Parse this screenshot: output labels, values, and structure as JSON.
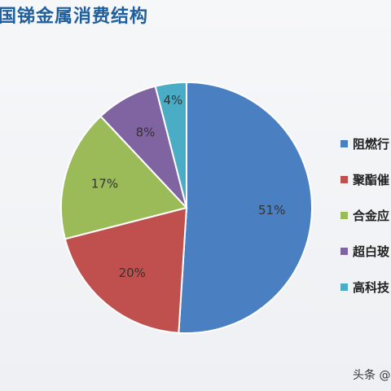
{
  "title": "国锑金属消费结构",
  "watermark": "头条 @",
  "chart_data": {
    "type": "pie",
    "categories": [
      "阻燃行",
      "聚酯催",
      "合金应",
      "超白玻",
      "高科技"
    ],
    "values": [
      51,
      20,
      17,
      8,
      4
    ],
    "data_labels": [
      "51%",
      "20%",
      "17%",
      "8%",
      "4%"
    ],
    "colors": [
      "#4a7fc1",
      "#c0504d",
      "#9bbb59",
      "#8064a2",
      "#4bacc6"
    ],
    "legend_position": "right"
  }
}
